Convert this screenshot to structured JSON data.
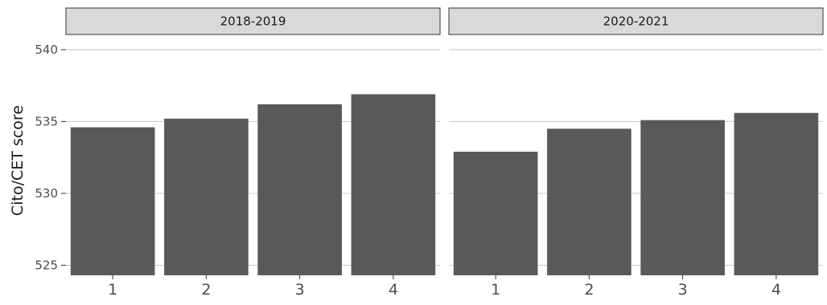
{
  "chart_data": {
    "type": "bar",
    "ylabel": "Cito/CET score",
    "xlabel": "",
    "ylim": [
      524.3,
      541
    ],
    "yticks": [
      525,
      530,
      535,
      540
    ],
    "ytick_labels": [
      "525",
      "530",
      "535",
      "540"
    ],
    "grid": true,
    "bar_color": "#595959",
    "strip_color": "#d9d9d9",
    "panels": [
      {
        "title": "2018-2019",
        "categories": [
          "1",
          "2",
          "3",
          "4"
        ],
        "values": [
          534.6,
          535.2,
          536.2,
          536.9
        ]
      },
      {
        "title": "2020-2021",
        "categories": [
          "1",
          "2",
          "3",
          "4"
        ],
        "values": [
          532.9,
          534.5,
          535.1,
          535.6
        ]
      }
    ]
  }
}
